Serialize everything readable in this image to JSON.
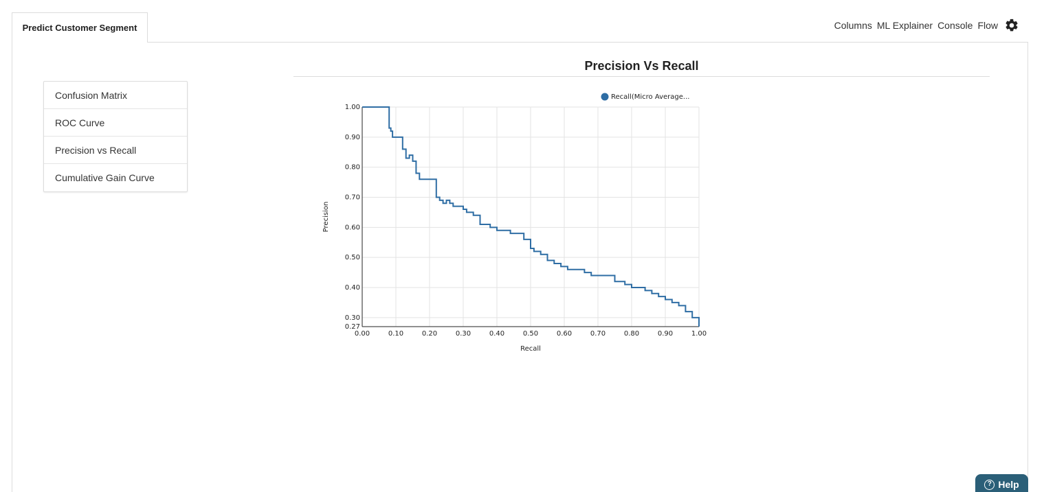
{
  "tab": {
    "label": "Predict Customer Segment"
  },
  "nav": {
    "columns": "Columns",
    "ml_explainer": "ML Explainer",
    "console": "Console",
    "flow": "Flow"
  },
  "menu": {
    "items": [
      {
        "label": "Confusion Matrix"
      },
      {
        "label": "ROC Curve"
      },
      {
        "label": "Precision vs Recall"
      },
      {
        "label": "Cumulative Gain Curve"
      }
    ]
  },
  "help": {
    "label": "Help",
    "icon": "?"
  },
  "colors": {
    "series": "#2e6da4",
    "grid": "#e3e3e3"
  },
  "chart_data": {
    "type": "line",
    "title": "Precision Vs Recall",
    "xlabel": "Recall",
    "ylabel": "Precision",
    "xlim": [
      0,
      1
    ],
    "ylim": [
      0.27,
      1.0
    ],
    "xticks": [
      "0.00",
      "0.10",
      "0.20",
      "0.30",
      "0.40",
      "0.50",
      "0.60",
      "0.70",
      "0.80",
      "0.90",
      "1.00"
    ],
    "yticks": [
      "0.27",
      "0.30",
      "0.40",
      "0.50",
      "0.60",
      "0.70",
      "0.80",
      "0.90",
      "1.00"
    ],
    "grid": true,
    "legend": "top-right",
    "series": [
      {
        "name": "Recall(Micro Average...",
        "step": true,
        "x": [
          0.0,
          0.08,
          0.08,
          0.085,
          0.09,
          0.1,
          0.12,
          0.13,
          0.14,
          0.15,
          0.16,
          0.17,
          0.18,
          0.2,
          0.22,
          0.22,
          0.23,
          0.24,
          0.25,
          0.26,
          0.27,
          0.28,
          0.3,
          0.31,
          0.33,
          0.34,
          0.35,
          0.36,
          0.38,
          0.4,
          0.42,
          0.44,
          0.46,
          0.48,
          0.5,
          0.51,
          0.53,
          0.55,
          0.57,
          0.59,
          0.61,
          0.64,
          0.66,
          0.68,
          0.72,
          0.75,
          0.78,
          0.8,
          0.84,
          0.86,
          0.88,
          0.9,
          0.92,
          0.94,
          0.96,
          0.98,
          1.0,
          1.0
        ],
        "y": [
          1.0,
          1.0,
          0.93,
          0.92,
          0.9,
          0.9,
          0.86,
          0.83,
          0.84,
          0.82,
          0.78,
          0.76,
          0.76,
          0.76,
          0.71,
          0.7,
          0.69,
          0.68,
          0.69,
          0.68,
          0.67,
          0.67,
          0.66,
          0.65,
          0.64,
          0.64,
          0.61,
          0.61,
          0.6,
          0.59,
          0.59,
          0.58,
          0.58,
          0.56,
          0.53,
          0.52,
          0.51,
          0.49,
          0.48,
          0.47,
          0.46,
          0.46,
          0.45,
          0.44,
          0.44,
          0.42,
          0.41,
          0.4,
          0.39,
          0.38,
          0.37,
          0.36,
          0.35,
          0.34,
          0.32,
          0.3,
          0.28,
          0.27
        ]
      }
    ]
  }
}
